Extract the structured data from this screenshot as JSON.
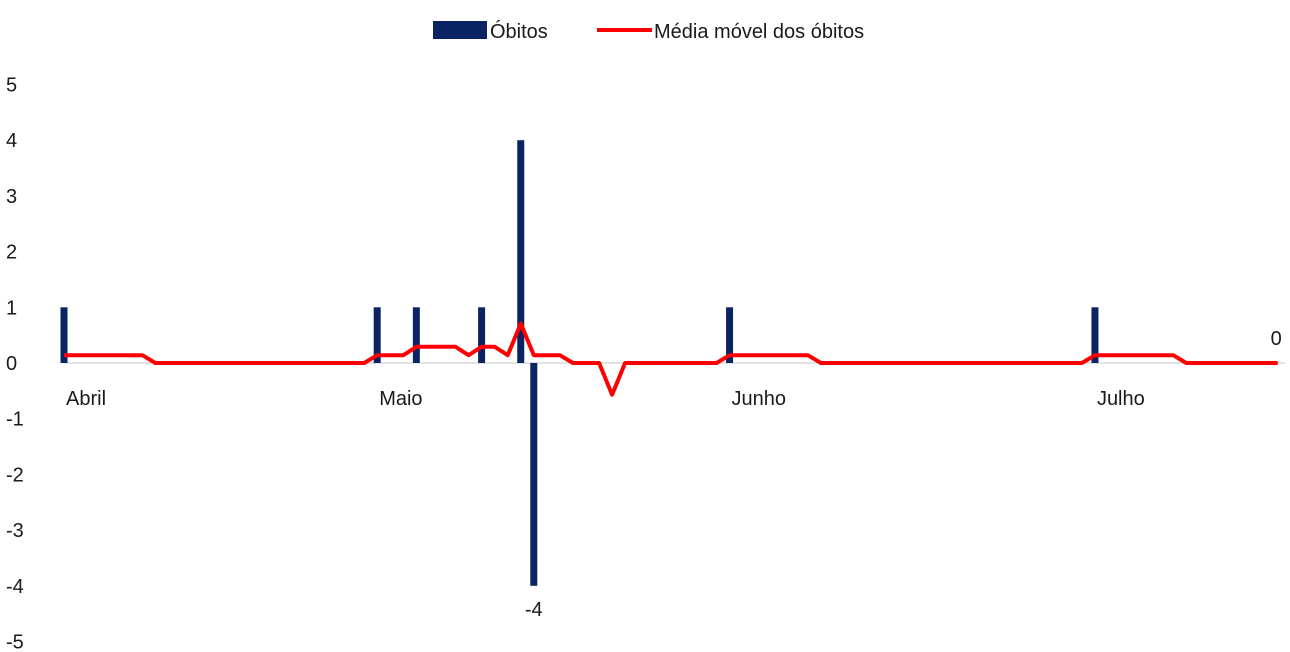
{
  "chart_data": {
    "type": "bar",
    "title": "",
    "xlabel": "",
    "ylabel": "",
    "ylim": [
      -5,
      5
    ],
    "yticks": [
      5,
      4,
      3,
      2,
      1,
      0,
      -1,
      -2,
      -3,
      -4,
      -5
    ],
    "grid": false,
    "legend_position": "top",
    "month_labels": [
      {
        "label": "Abril",
        "day_index": 0
      },
      {
        "label": "Maio",
        "day_index": 24
      },
      {
        "label": "Junho",
        "day_index": 51
      },
      {
        "label": "Julho",
        "day_index": 79
      }
    ],
    "series": [
      {
        "name": "Óbitos",
        "type": "bar",
        "color": "#0a2463",
        "values": [
          1,
          0,
          0,
          0,
          0,
          0,
          0,
          0,
          0,
          0,
          0,
          0,
          0,
          0,
          0,
          0,
          0,
          0,
          0,
          0,
          0,
          0,
          0,
          0,
          1,
          0,
          0,
          1,
          0,
          0,
          0,
          0,
          1,
          0,
          0,
          4,
          -4,
          0,
          0,
          0,
          0,
          0,
          0,
          0,
          0,
          0,
          0,
          0,
          0,
          0,
          0,
          1,
          0,
          0,
          0,
          0,
          0,
          0,
          0,
          0,
          0,
          0,
          0,
          0,
          0,
          0,
          0,
          0,
          0,
          0,
          0,
          0,
          0,
          0,
          0,
          0,
          0,
          0,
          0,
          1,
          0,
          0,
          0,
          0,
          0,
          0,
          0,
          0,
          0,
          0,
          0,
          0,
          0,
          0
        ]
      },
      {
        "name": "Média móvel dos óbitos",
        "type": "line",
        "color": "#ff0000",
        "values": [
          0.14,
          0.14,
          0.14,
          0.14,
          0.14,
          0.14,
          0.14,
          0,
          0,
          0,
          0,
          0,
          0,
          0,
          0,
          0,
          0,
          0,
          0,
          0,
          0,
          0,
          0,
          0,
          0.14,
          0.14,
          0.14,
          0.29,
          0.29,
          0.29,
          0.29,
          0.14,
          0.29,
          0.29,
          0.14,
          0.71,
          0.14,
          0.14,
          0.14,
          0,
          0,
          0,
          -0.57,
          0,
          0,
          0,
          0,
          0,
          0,
          0,
          0,
          0.14,
          0.14,
          0.14,
          0.14,
          0.14,
          0.14,
          0.14,
          0,
          0,
          0,
          0,
          0,
          0,
          0,
          0,
          0,
          0,
          0,
          0,
          0,
          0,
          0,
          0,
          0,
          0,
          0,
          0,
          0,
          0.14,
          0.14,
          0.14,
          0.14,
          0.14,
          0.14,
          0.14,
          0,
          0,
          0,
          0,
          0,
          0,
          0,
          0
        ]
      }
    ],
    "data_labels": [
      {
        "day_index": 36,
        "text": "-4"
      },
      {
        "day_index": 93,
        "text": "0"
      }
    ]
  }
}
